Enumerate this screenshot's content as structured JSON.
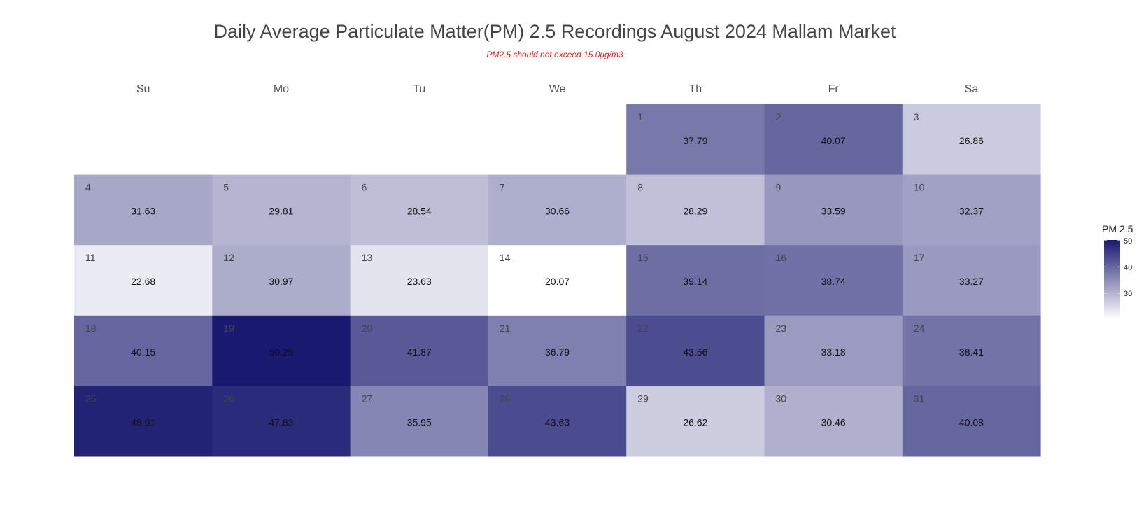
{
  "title": "Daily Average Particulate Matter(PM) 2.5 Recordings August 2024 Mallam Market",
  "subtitle": "PM2.5 should not exceed 15.0μg/m3",
  "weekdays": [
    "Su",
    "Mo",
    "Tu",
    "We",
    "Th",
    "Fr",
    "Sa"
  ],
  "colors": {
    "low": "#ffffff",
    "high": "#191970"
  },
  "chart_data": {
    "type": "heatmap",
    "layout": "calendar",
    "month": "August 2024",
    "first_weekday_index": 4,
    "days": [
      1,
      2,
      3,
      4,
      5,
      6,
      7,
      8,
      9,
      10,
      11,
      12,
      13,
      14,
      15,
      16,
      17,
      18,
      19,
      20,
      21,
      22,
      23,
      24,
      25,
      26,
      27,
      28,
      29,
      30,
      31
    ],
    "values": [
      37.79,
      40.07,
      26.86,
      31.63,
      29.81,
      28.54,
      30.66,
      28.29,
      33.59,
      32.37,
      22.68,
      30.97,
      23.63,
      20.07,
      39.14,
      38.74,
      33.27,
      40.15,
      50.25,
      41.87,
      36.79,
      43.56,
      33.18,
      38.41,
      48.91,
      47.83,
      35.95,
      43.63,
      26.62,
      30.46,
      40.08
    ],
    "value_range": [
      20.07,
      50.25
    ],
    "legend": {
      "title": "PM 2.5",
      "ticks": [
        30,
        40,
        50
      ],
      "position": "right"
    }
  }
}
